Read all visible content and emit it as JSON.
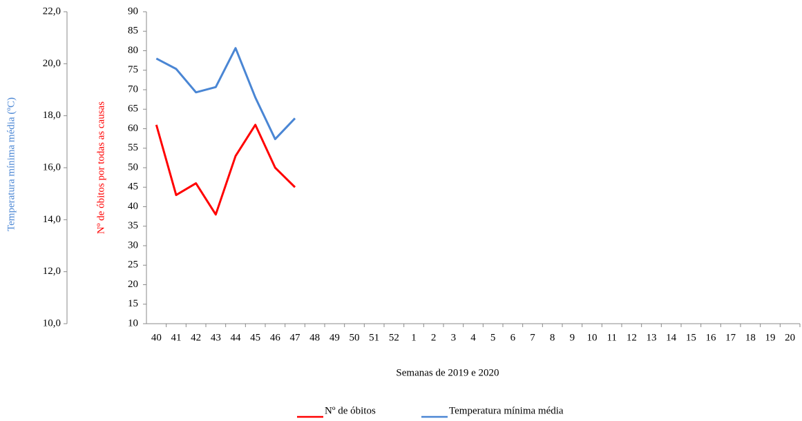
{
  "chart_data": {
    "type": "line",
    "x_label": "Semanas de 2019 e 2020",
    "y_label": "Nº de óbitos por todas as causas",
    "y2_label": "Temperatura mínima média (ºC)",
    "categories": [
      "40",
      "41",
      "42",
      "43",
      "44",
      "45",
      "46",
      "47",
      "48",
      "49",
      "50",
      "51",
      "52",
      "1",
      "2",
      "3",
      "4",
      "5",
      "6",
      "7",
      "8",
      "9",
      "10",
      "11",
      "12",
      "13",
      "14",
      "15",
      "16",
      "17",
      "18",
      "19",
      "20"
    ],
    "series": [
      {
        "name": "Nº de óbitos",
        "color": "#ff0000",
        "values": [
          61,
          43,
          46,
          38,
          53,
          61,
          50,
          45,
          null,
          null,
          null,
          null,
          null,
          null,
          null,
          null,
          null,
          null,
          null,
          null,
          null,
          null,
          null,
          null,
          null,
          null,
          null,
          null,
          null,
          null,
          null,
          null,
          null
        ]
      },
      {
        "name": "Temperatura mínima média",
        "color": "#4a86d4",
        "axis": "y2",
        "values": [
          20.2,
          19.8,
          18.9,
          19.1,
          20.6,
          18.7,
          17.1,
          17.9,
          null,
          null,
          null,
          null,
          null,
          null,
          null,
          null,
          null,
          null,
          null,
          null,
          null,
          null,
          null,
          null,
          null,
          null,
          null,
          null,
          null,
          null,
          null,
          null,
          null
        ]
      }
    ],
    "ylim": [
      10,
      90
    ],
    "yticks": [
      10,
      15,
      20,
      25,
      30,
      35,
      40,
      45,
      50,
      55,
      60,
      65,
      70,
      75,
      80,
      85,
      90
    ],
    "y2lim": [
      10,
      22
    ],
    "y2ticks": [
      {
        "value": 10,
        "label": "10,0"
      },
      {
        "value": 12,
        "label": "12,0"
      },
      {
        "value": 14,
        "label": "14,0"
      },
      {
        "value": 16,
        "label": "16,0"
      },
      {
        "value": 18,
        "label": "18,0"
      },
      {
        "value": 20,
        "label": "20,0"
      },
      {
        "value": 22,
        "label": "22,0"
      }
    ],
    "grid": false
  }
}
